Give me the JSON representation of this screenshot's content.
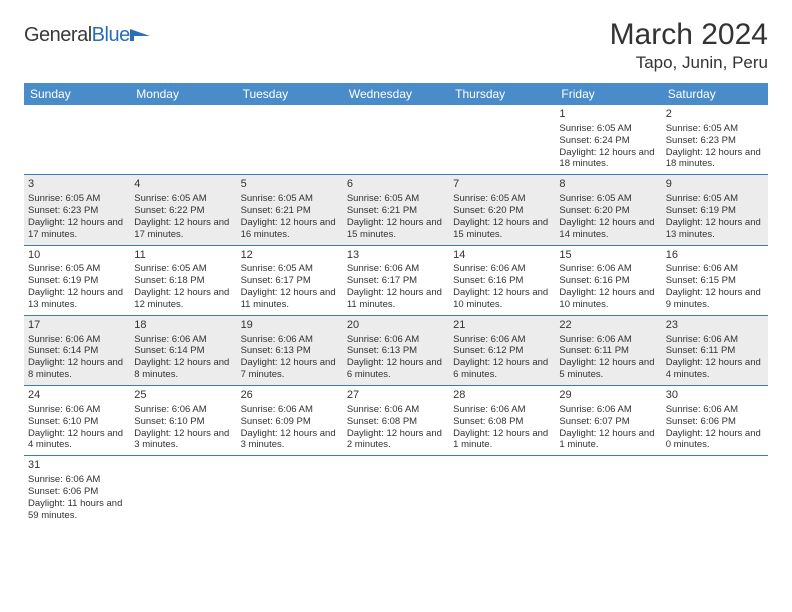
{
  "logo": {
    "textGeneral": "General",
    "textBlue": "Blue"
  },
  "header": {
    "month": "March 2024",
    "location": "Tapo, Junin, Peru"
  },
  "colors": {
    "headerBar": "#4a8cc9",
    "rowBorder": "#3a7bb8",
    "shaded": "#ececec",
    "text": "#333333",
    "logoBlue": "#2a6fb5"
  },
  "weekdays": [
    "Sunday",
    "Monday",
    "Tuesday",
    "Wednesday",
    "Thursday",
    "Friday",
    "Saturday"
  ],
  "startOffset": 5,
  "days": [
    {
      "n": 1,
      "sr": "6:05 AM",
      "ss": "6:24 PM",
      "dl": "12 hours and 18 minutes."
    },
    {
      "n": 2,
      "sr": "6:05 AM",
      "ss": "6:23 PM",
      "dl": "12 hours and 18 minutes."
    },
    {
      "n": 3,
      "sr": "6:05 AM",
      "ss": "6:23 PM",
      "dl": "12 hours and 17 minutes."
    },
    {
      "n": 4,
      "sr": "6:05 AM",
      "ss": "6:22 PM",
      "dl": "12 hours and 17 minutes."
    },
    {
      "n": 5,
      "sr": "6:05 AM",
      "ss": "6:21 PM",
      "dl": "12 hours and 16 minutes."
    },
    {
      "n": 6,
      "sr": "6:05 AM",
      "ss": "6:21 PM",
      "dl": "12 hours and 15 minutes."
    },
    {
      "n": 7,
      "sr": "6:05 AM",
      "ss": "6:20 PM",
      "dl": "12 hours and 15 minutes."
    },
    {
      "n": 8,
      "sr": "6:05 AM",
      "ss": "6:20 PM",
      "dl": "12 hours and 14 minutes."
    },
    {
      "n": 9,
      "sr": "6:05 AM",
      "ss": "6:19 PM",
      "dl": "12 hours and 13 minutes."
    },
    {
      "n": 10,
      "sr": "6:05 AM",
      "ss": "6:19 PM",
      "dl": "12 hours and 13 minutes."
    },
    {
      "n": 11,
      "sr": "6:05 AM",
      "ss": "6:18 PM",
      "dl": "12 hours and 12 minutes."
    },
    {
      "n": 12,
      "sr": "6:05 AM",
      "ss": "6:17 PM",
      "dl": "12 hours and 11 minutes."
    },
    {
      "n": 13,
      "sr": "6:06 AM",
      "ss": "6:17 PM",
      "dl": "12 hours and 11 minutes."
    },
    {
      "n": 14,
      "sr": "6:06 AM",
      "ss": "6:16 PM",
      "dl": "12 hours and 10 minutes."
    },
    {
      "n": 15,
      "sr": "6:06 AM",
      "ss": "6:16 PM",
      "dl": "12 hours and 10 minutes."
    },
    {
      "n": 16,
      "sr": "6:06 AM",
      "ss": "6:15 PM",
      "dl": "12 hours and 9 minutes."
    },
    {
      "n": 17,
      "sr": "6:06 AM",
      "ss": "6:14 PM",
      "dl": "12 hours and 8 minutes."
    },
    {
      "n": 18,
      "sr": "6:06 AM",
      "ss": "6:14 PM",
      "dl": "12 hours and 8 minutes."
    },
    {
      "n": 19,
      "sr": "6:06 AM",
      "ss": "6:13 PM",
      "dl": "12 hours and 7 minutes."
    },
    {
      "n": 20,
      "sr": "6:06 AM",
      "ss": "6:13 PM",
      "dl": "12 hours and 6 minutes."
    },
    {
      "n": 21,
      "sr": "6:06 AM",
      "ss": "6:12 PM",
      "dl": "12 hours and 6 minutes."
    },
    {
      "n": 22,
      "sr": "6:06 AM",
      "ss": "6:11 PM",
      "dl": "12 hours and 5 minutes."
    },
    {
      "n": 23,
      "sr": "6:06 AM",
      "ss": "6:11 PM",
      "dl": "12 hours and 4 minutes."
    },
    {
      "n": 24,
      "sr": "6:06 AM",
      "ss": "6:10 PM",
      "dl": "12 hours and 4 minutes."
    },
    {
      "n": 25,
      "sr": "6:06 AM",
      "ss": "6:10 PM",
      "dl": "12 hours and 3 minutes."
    },
    {
      "n": 26,
      "sr": "6:06 AM",
      "ss": "6:09 PM",
      "dl": "12 hours and 3 minutes."
    },
    {
      "n": 27,
      "sr": "6:06 AM",
      "ss": "6:08 PM",
      "dl": "12 hours and 2 minutes."
    },
    {
      "n": 28,
      "sr": "6:06 AM",
      "ss": "6:08 PM",
      "dl": "12 hours and 1 minute."
    },
    {
      "n": 29,
      "sr": "6:06 AM",
      "ss": "6:07 PM",
      "dl": "12 hours and 1 minute."
    },
    {
      "n": 30,
      "sr": "6:06 AM",
      "ss": "6:06 PM",
      "dl": "12 hours and 0 minutes."
    },
    {
      "n": 31,
      "sr": "6:06 AM",
      "ss": "6:06 PM",
      "dl": "11 hours and 59 minutes."
    }
  ],
  "labels": {
    "sunrise": "Sunrise: ",
    "sunset": "Sunset: ",
    "daylight": "Daylight: "
  }
}
